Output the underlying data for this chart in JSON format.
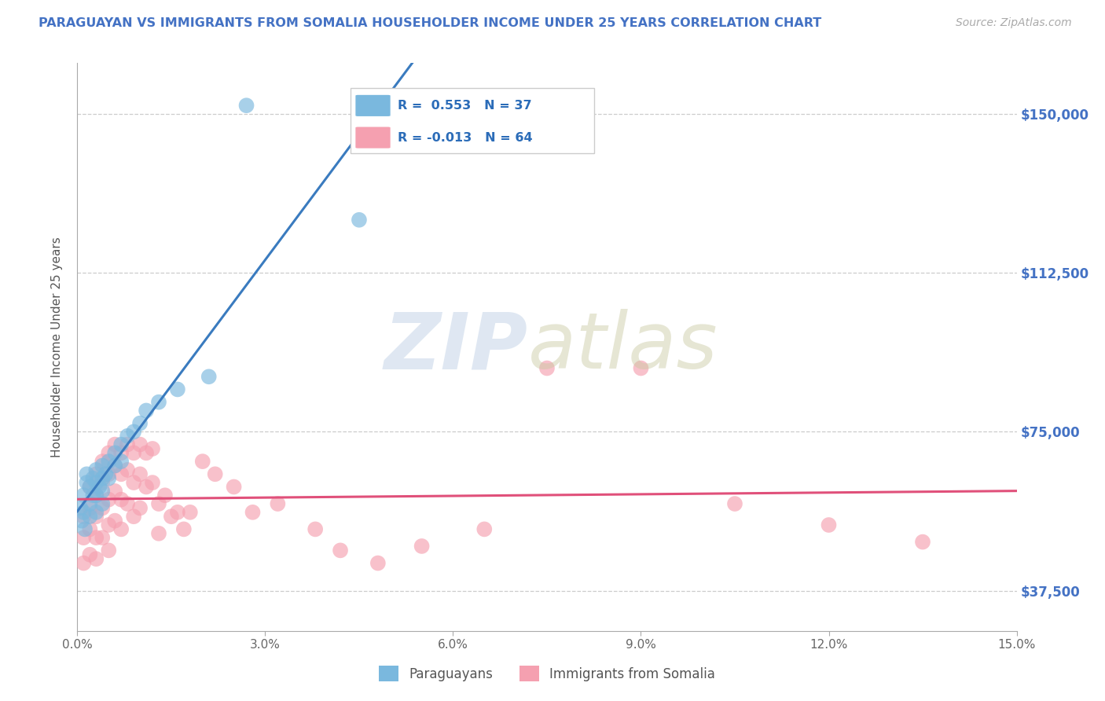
{
  "title": "PARAGUAYAN VS IMMIGRANTS FROM SOMALIA HOUSEHOLDER INCOME UNDER 25 YEARS CORRELATION CHART",
  "source": "Source: ZipAtlas.com",
  "ylabel": "Householder Income Under 25 years",
  "xlim": [
    0.0,
    0.15
  ],
  "ylim": [
    28000,
    162000
  ],
  "xticks": [
    0.0,
    0.03,
    0.06,
    0.09,
    0.12,
    0.15
  ],
  "xticklabels": [
    "0.0%",
    "3.0%",
    "6.0%",
    "9.0%",
    "12.0%",
    "15.0%"
  ],
  "yticks": [
    37500,
    75000,
    112500,
    150000
  ],
  "yticklabels": [
    "$37,500",
    "$75,000",
    "$112,500",
    "$150,000"
  ],
  "legend_labels": [
    "Paraguayans",
    "Immigrants from Somalia"
  ],
  "r_paraguayan": 0.553,
  "n_paraguayan": 37,
  "r_somalia": -0.013,
  "n_somalia": 64,
  "blue_color": "#7ab8de",
  "pink_color": "#f5a0b0",
  "blue_line_color": "#3a7bbf",
  "pink_line_color": "#e0507a",
  "title_color": "#4472c4",
  "right_label_color": "#4472c4",
  "paraguayan_x": [
    0.0005,
    0.0007,
    0.001,
    0.001,
    0.0012,
    0.0015,
    0.0015,
    0.002,
    0.002,
    0.002,
    0.0025,
    0.0025,
    0.003,
    0.003,
    0.003,
    0.003,
    0.0035,
    0.004,
    0.004,
    0.004,
    0.004,
    0.0045,
    0.005,
    0.005,
    0.006,
    0.006,
    0.007,
    0.007,
    0.008,
    0.009,
    0.01,
    0.011,
    0.013,
    0.016,
    0.021,
    0.027,
    0.045
  ],
  "paraguayan_y": [
    57000,
    54000,
    60000,
    56000,
    52000,
    65000,
    63000,
    62000,
    58000,
    55000,
    64000,
    60000,
    66000,
    63000,
    60000,
    56000,
    62000,
    67000,
    64000,
    61000,
    58000,
    65000,
    68000,
    64000,
    70000,
    67000,
    72000,
    68000,
    74000,
    75000,
    77000,
    80000,
    82000,
    85000,
    88000,
    152000,
    125000
  ],
  "somalia_x": [
    0.001,
    0.001,
    0.001,
    0.002,
    0.002,
    0.002,
    0.002,
    0.003,
    0.003,
    0.003,
    0.003,
    0.003,
    0.004,
    0.004,
    0.004,
    0.004,
    0.005,
    0.005,
    0.005,
    0.005,
    0.005,
    0.006,
    0.006,
    0.006,
    0.006,
    0.007,
    0.007,
    0.007,
    0.007,
    0.008,
    0.008,
    0.008,
    0.009,
    0.009,
    0.009,
    0.01,
    0.01,
    0.01,
    0.011,
    0.011,
    0.012,
    0.012,
    0.013,
    0.013,
    0.014,
    0.015,
    0.016,
    0.017,
    0.018,
    0.02,
    0.022,
    0.025,
    0.028,
    0.032,
    0.038,
    0.042,
    0.048,
    0.055,
    0.065,
    0.075,
    0.09,
    0.105,
    0.12,
    0.135
  ],
  "somalia_y": [
    55000,
    50000,
    44000,
    62000,
    57000,
    52000,
    46000,
    65000,
    60000,
    55000,
    50000,
    45000,
    68000,
    63000,
    57000,
    50000,
    70000,
    65000,
    59000,
    53000,
    47000,
    72000,
    67000,
    61000,
    54000,
    70000,
    65000,
    59000,
    52000,
    72000,
    66000,
    58000,
    70000,
    63000,
    55000,
    72000,
    65000,
    57000,
    70000,
    62000,
    71000,
    63000,
    58000,
    51000,
    60000,
    55000,
    56000,
    52000,
    56000,
    68000,
    65000,
    62000,
    56000,
    58000,
    52000,
    47000,
    44000,
    48000,
    52000,
    90000,
    90000,
    58000,
    53000,
    49000
  ]
}
